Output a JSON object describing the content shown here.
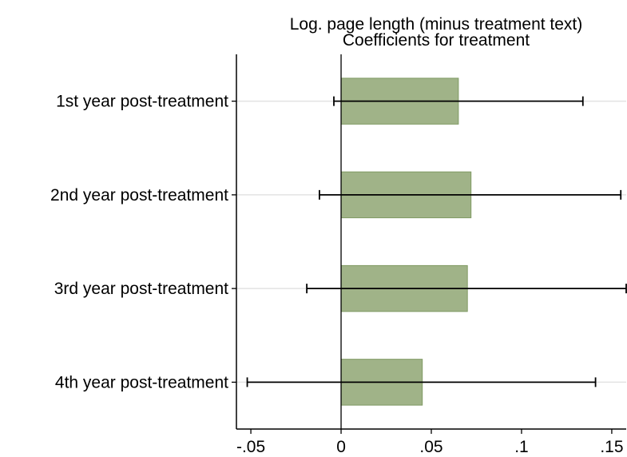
{
  "chart_data": {
    "type": "bar",
    "orientation": "horizontal",
    "title": [
      "Log. page length (minus treatment text)",
      "Coefficients for treatment"
    ],
    "xlabel": "",
    "ylabel": "",
    "categories": [
      "1st year post-treatment",
      "2nd year post-treatment",
      "3rd year post-treatment",
      "4th year post-treatment"
    ],
    "values": [
      0.065,
      0.072,
      0.07,
      0.045
    ],
    "ci_lower": [
      -0.004,
      -0.012,
      -0.019,
      -0.052
    ],
    "ci_upper": [
      0.134,
      0.155,
      0.158,
      0.141
    ],
    "xlim": [
      -0.058,
      0.158
    ],
    "xticks": [
      {
        "value": -0.05,
        "label": "-.05"
      },
      {
        "value": 0,
        "label": "0"
      },
      {
        "value": 0.05,
        "label": ".05"
      },
      {
        "value": 0.1,
        "label": ".1"
      },
      {
        "value": 0.15,
        "label": ".15"
      }
    ],
    "grid": true,
    "legend": "none",
    "colors": {
      "bar_fill": "#a0b388",
      "bar_stroke": "#7f9a63",
      "grid": "#e3e3e3",
      "axis": "#000000",
      "errorbar": "#000000"
    }
  }
}
